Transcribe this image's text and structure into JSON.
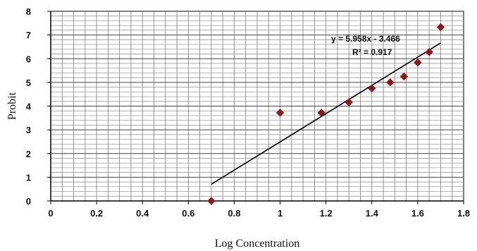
{
  "chart_data": {
    "type": "scatter",
    "title": "",
    "xlabel": "Log Concentration",
    "ylabel": "Probit",
    "xlim": [
      0,
      1.8
    ],
    "ylim": [
      0,
      8
    ],
    "x_ticks": [
      "0",
      "0.2",
      "0.4",
      "0.6",
      "0.8",
      "1",
      "1.2",
      "1.4",
      "1.6",
      "1.8"
    ],
    "y_ticks": [
      "0",
      "1",
      "2",
      "3",
      "4",
      "5",
      "6",
      "7",
      "8"
    ],
    "grid": true,
    "series": [
      {
        "marker": "diamond",
        "color": "#8B1A1A",
        "points": [
          {
            "x": 0.7,
            "y": 0.0
          },
          {
            "x": 1.0,
            "y": 3.72
          },
          {
            "x": 1.18,
            "y": 3.72
          },
          {
            "x": 1.3,
            "y": 4.16
          },
          {
            "x": 1.4,
            "y": 4.75
          },
          {
            "x": 1.48,
            "y": 5.0
          },
          {
            "x": 1.54,
            "y": 5.25
          },
          {
            "x": 1.6,
            "y": 5.84
          },
          {
            "x": 1.65,
            "y": 6.28
          },
          {
            "x": 1.7,
            "y": 7.33
          }
        ]
      }
    ],
    "trendline": {
      "type": "linear",
      "slope": 5.958,
      "intercept": -3.466,
      "x_range": [
        0.7,
        1.7
      ],
      "color": "#000000",
      "equation_label": "y = 5.958x - 3.466",
      "r2_label": "R² = 0.917"
    }
  }
}
